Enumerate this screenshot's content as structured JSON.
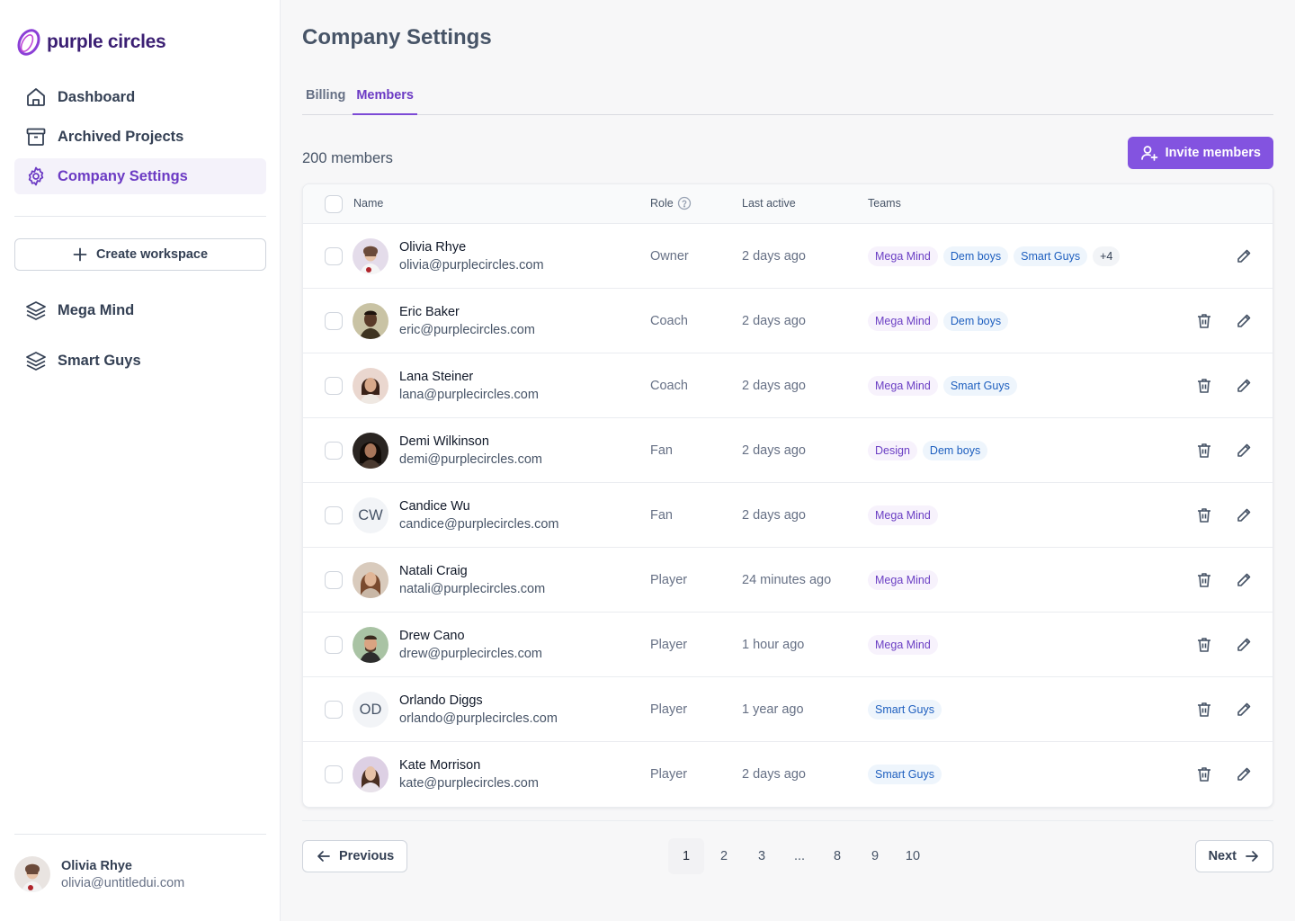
{
  "app": {
    "brand": "purple circles"
  },
  "sidebar": {
    "nav": [
      {
        "label": "Dashboard",
        "icon": "home-icon"
      },
      {
        "label": "Archived Projects",
        "icon": "archive-icon"
      },
      {
        "label": "Company Settings",
        "icon": "gear-icon",
        "active": true
      }
    ],
    "create_workspace": "Create workspace",
    "workspaces": [
      {
        "label": "Mega Mind",
        "icon": "layers-icon"
      },
      {
        "label": "Smart Guys",
        "icon": "layers-icon"
      }
    ],
    "user": {
      "name": "Olivia Rhye",
      "email": "olivia@untitledui.com"
    }
  },
  "main": {
    "title": "Company Settings",
    "tabs": [
      {
        "label": "Billing"
      },
      {
        "label": "Members",
        "active": true
      }
    ],
    "member_count": "200 members",
    "invite_label": "Invite members",
    "table": {
      "headers": {
        "name": "Name",
        "role": "Role",
        "last_active": "Last active",
        "teams": "Teams"
      },
      "rows": [
        {
          "name": "Olivia Rhye",
          "email": "olivia@purplecircles.com",
          "role": "Owner",
          "last_active": "2 days ago",
          "avatar": "photo",
          "teams": [
            "Mega Mind",
            "Dem boys",
            "Smart Guys",
            "+4"
          ],
          "deletable": false
        },
        {
          "name": "Eric Baker",
          "email": "eric@purplecircles.com",
          "role": "Coach",
          "last_active": "2 days ago",
          "avatar": "photo",
          "teams": [
            "Mega Mind",
            "Dem boys"
          ],
          "deletable": true
        },
        {
          "name": "Lana Steiner",
          "email": "lana@purplecircles.com",
          "role": "Coach",
          "last_active": "2 days ago",
          "avatar": "photo",
          "teams": [
            "Mega Mind",
            "Smart Guys"
          ],
          "deletable": true
        },
        {
          "name": "Demi Wilkinson",
          "email": "demi@purplecircles.com",
          "role": "Fan",
          "last_active": "2 days ago",
          "avatar": "photo",
          "teams": [
            "Design",
            "Dem boys"
          ],
          "deletable": true
        },
        {
          "name": "Candice Wu",
          "email": "candice@purplecircles.com",
          "role": "Fan",
          "last_active": "2 days ago",
          "avatar": "CW",
          "teams": [
            "Mega Mind"
          ],
          "deletable": true
        },
        {
          "name": "Natali Craig",
          "email": "natali@purplecircles.com",
          "role": "Player",
          "last_active": "24 minutes ago",
          "avatar": "photo",
          "teams": [
            "Mega Mind"
          ],
          "deletable": true
        },
        {
          "name": "Drew Cano",
          "email": "drew@purplecircles.com",
          "role": "Player",
          "last_active": "1 hour ago",
          "avatar": "photo",
          "teams": [
            "Mega Mind"
          ],
          "deletable": true
        },
        {
          "name": "Orlando Diggs",
          "email": "orlando@purplecircles.com",
          "role": "Player",
          "last_active": "1 year ago",
          "avatar": "OD",
          "teams": [
            "Smart Guys"
          ],
          "deletable": true
        },
        {
          "name": "Kate Morrison",
          "email": "kate@purplecircles.com",
          "role": "Player",
          "last_active": "2 days ago",
          "avatar": "photo",
          "teams": [
            "Smart Guys"
          ],
          "deletable": true
        }
      ]
    },
    "pagination": {
      "previous": "Previous",
      "next": "Next",
      "pages": [
        "1",
        "2",
        "3",
        "...",
        "8",
        "9",
        "10"
      ],
      "current": "1"
    }
  },
  "colors": {
    "accent": "#8353e0",
    "accent_text": "#6c3bc4",
    "team_purple": "#6b3fc4",
    "team_blue": "#1e5fbf"
  }
}
